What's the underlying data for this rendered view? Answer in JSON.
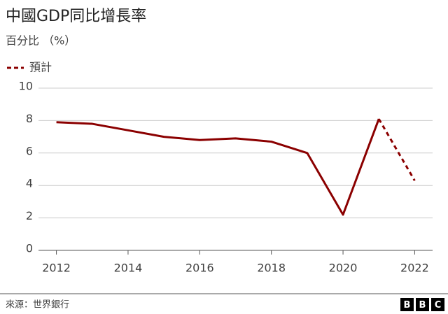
{
  "chart_data": {
    "type": "line",
    "title": "中國GDP同比增長率",
    "subtitle": "百分比 （%）",
    "x": [
      2012,
      2013,
      2014,
      2015,
      2016,
      2017,
      2018,
      2019,
      2020,
      2021,
      2022
    ],
    "series": [
      {
        "color": "#8b0000",
        "dashed": false,
        "values": [
          7.9,
          7.8,
          7.4,
          7.0,
          6.8,
          6.9,
          6.7,
          6.0,
          2.2,
          8.1,
          null
        ]
      },
      {
        "name": "預計",
        "color": "#8b0000",
        "dashed": true,
        "values": [
          null,
          null,
          null,
          null,
          null,
          null,
          null,
          null,
          null,
          8.1,
          4.3
        ]
      }
    ],
    "xlim": [
      2011.5,
      2022.5
    ],
    "xticks": [
      2012,
      2014,
      2016,
      2018,
      2020,
      2022
    ],
    "ylim": [
      0,
      10
    ],
    "yticks": [
      0,
      2,
      4,
      6,
      8,
      10
    ],
    "grid": true,
    "legend": "top-left",
    "source": "來源：世界銀行",
    "logo": [
      "B",
      "B",
      "C"
    ]
  }
}
